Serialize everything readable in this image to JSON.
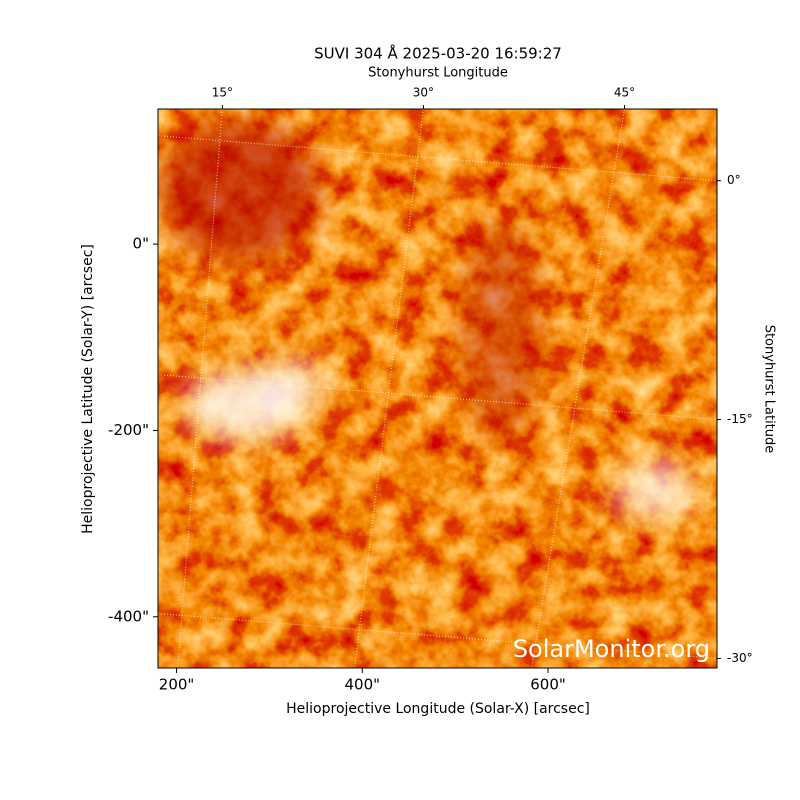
{
  "chart_data": {
    "type": "image",
    "title": "SUVI 304 Å 2025-03-20 16:59:27",
    "x_label": "Helioprojective Longitude (Solar-X) [arcsec]",
    "y_label": "Helioprojective Latitude (Solar-Y) [arcsec]",
    "x2_label": "Stonyhurst Longitude",
    "y2_label": "Stonyhurst Latitude",
    "watermark": "SolarMonitor.org",
    "xlim": [
      180,
      782
    ],
    "ylim": [
      -455,
      145
    ],
    "xticks": [
      {
        "value": 200,
        "label": "200\""
      },
      {
        "value": 400,
        "label": "400\""
      },
      {
        "value": 600,
        "label": "600\""
      }
    ],
    "yticks": [
      {
        "value": 0,
        "label": "0\""
      },
      {
        "value": -200,
        "label": "-200\""
      },
      {
        "value": -400,
        "label": "-400\""
      }
    ],
    "x2lim": [
      10.2,
      51.9
    ],
    "x2ticks": [
      {
        "value": 15,
        "label": "15°"
      },
      {
        "value": 30,
        "label": "30°"
      },
      {
        "value": 45,
        "label": "45°"
      }
    ],
    "y2lim": [
      -30.6,
      4.5
    ],
    "y2ticks": [
      {
        "value": 0,
        "label": "0°"
      },
      {
        "value": -15,
        "label": "-15°"
      },
      {
        "value": -30,
        "label": "-30°"
      }
    ],
    "grid": true
  }
}
